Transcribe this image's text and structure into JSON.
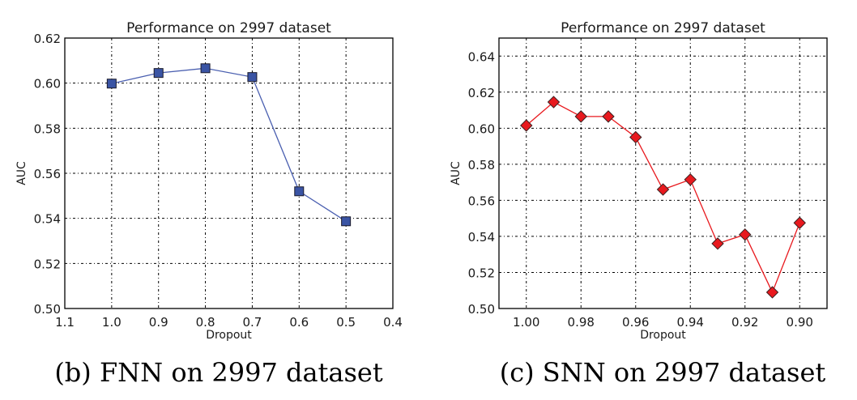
{
  "chart_data": [
    {
      "type": "line",
      "title": "Performance on 2997 dataset",
      "xlabel": "Dropout",
      "ylabel": "AUC",
      "xlim": [
        1.1,
        0.4
      ],
      "ylim": [
        0.5,
        0.62
      ],
      "x_reversed": true,
      "grid": true,
      "xticks": [
        1.1,
        1.0,
        0.9,
        0.8,
        0.7,
        0.6,
        0.5,
        0.4
      ],
      "xtick_labels": [
        "1.1",
        "1.0",
        "0.9",
        "0.8",
        "0.7",
        "0.6",
        "0.5",
        "0.4"
      ],
      "yticks": [
        0.5,
        0.52,
        0.54,
        0.56,
        0.58,
        0.6,
        0.62
      ],
      "ytick_labels": [
        "0.50",
        "0.52",
        "0.54",
        "0.56",
        "0.58",
        "0.60",
        "0.62"
      ],
      "series": [
        {
          "name": "FNN",
          "color": "#3a54a4",
          "line_color": "#4a5fb0",
          "marker": "square",
          "x": [
            1.0,
            0.9,
            0.8,
            0.7,
            0.6,
            0.5
          ],
          "values": [
            0.5998,
            0.6045,
            0.6066,
            0.6027,
            0.552,
            0.5387
          ]
        }
      ],
      "caption": "(b) FNN on 2997 dataset"
    },
    {
      "type": "line",
      "title": "Performance on 2997 dataset",
      "xlabel": "Dropout",
      "ylabel": "AUC",
      "xlim": [
        1.01,
        0.89
      ],
      "ylim": [
        0.5,
        0.65
      ],
      "x_reversed": true,
      "grid": true,
      "xticks": [
        1.0,
        0.98,
        0.96,
        0.94,
        0.92,
        0.9
      ],
      "xtick_labels": [
        "1.00",
        "0.98",
        "0.96",
        "0.94",
        "0.92",
        "0.90"
      ],
      "yticks": [
        0.5,
        0.52,
        0.54,
        0.56,
        0.58,
        0.6,
        0.62,
        0.64
      ],
      "ytick_labels": [
        "0.50",
        "0.52",
        "0.54",
        "0.56",
        "0.58",
        "0.60",
        "0.62",
        "0.64"
      ],
      "series": [
        {
          "name": "SNN",
          "color": "#e8191e",
          "line_color": "#e8191e",
          "marker": "diamond",
          "x": [
            1.0,
            0.99,
            0.98,
            0.97,
            0.96,
            0.95,
            0.94,
            0.93,
            0.92,
            0.91,
            0.9
          ],
          "values": [
            0.6015,
            0.6145,
            0.6065,
            0.6065,
            0.595,
            0.566,
            0.5715,
            0.536,
            0.541,
            0.509,
            0.5475
          ]
        }
      ],
      "caption": "(c) SNN on 2997 dataset"
    }
  ]
}
